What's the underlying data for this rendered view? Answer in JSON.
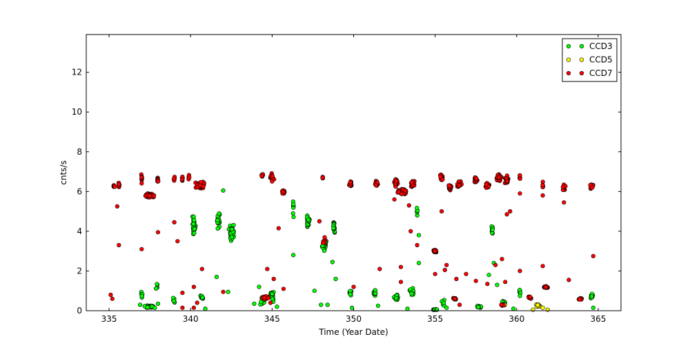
{
  "chart_data": {
    "type": "scatter",
    "xlabel": "Time (Year Date)",
    "ylabel": "cnts/s",
    "xlim": [
      333.6,
      366.4
    ],
    "ylim": [
      0,
      13.9
    ],
    "x_ticks": [
      335,
      340,
      345,
      350,
      355,
      360,
      365
    ],
    "y_ticks": [
      0,
      2,
      4,
      6,
      8,
      10,
      12
    ],
    "grid": false,
    "legend_position": "top-right",
    "note": "values estimated from the plot; dense clusters summarized by center/spread/count",
    "series": [
      {
        "name": "CCD3",
        "color": "#00ff00",
        "clusters": [
          {
            "x": 337.5,
            "y": 0.2,
            "dx": 0.5,
            "dy": 0.08,
            "n": 45
          },
          {
            "x": 337.0,
            "y": 0.8,
            "dx": 0.1,
            "dy": 0.2,
            "n": 8
          },
          {
            "x": 337.9,
            "y": 1.2,
            "dx": 0.1,
            "dy": 0.2,
            "n": 6
          },
          {
            "x": 339.0,
            "y": 0.55,
            "dx": 0.08,
            "dy": 0.2,
            "n": 6
          },
          {
            "x": 340.2,
            "y": 4.3,
            "dx": 0.12,
            "dy": 0.7,
            "n": 30
          },
          {
            "x": 340.7,
            "y": 0.6,
            "dx": 0.2,
            "dy": 0.2,
            "n": 10
          },
          {
            "x": 341.7,
            "y": 4.6,
            "dx": 0.12,
            "dy": 0.55,
            "n": 25
          },
          {
            "x": 342.5,
            "y": 4.0,
            "dx": 0.2,
            "dy": 0.5,
            "n": 35
          },
          {
            "x": 344.4,
            "y": 0.5,
            "dx": 0.2,
            "dy": 0.3,
            "n": 15
          },
          {
            "x": 345.0,
            "y": 0.8,
            "dx": 0.15,
            "dy": 0.4,
            "n": 20
          },
          {
            "x": 346.3,
            "y": 5.2,
            "dx": 0.05,
            "dy": 0.6,
            "n": 8
          },
          {
            "x": 347.2,
            "y": 4.5,
            "dx": 0.12,
            "dy": 0.5,
            "n": 25
          },
          {
            "x": 348.2,
            "y": 3.3,
            "dx": 0.15,
            "dy": 0.4,
            "n": 30
          },
          {
            "x": 348.8,
            "y": 4.2,
            "dx": 0.08,
            "dy": 0.5,
            "n": 15
          },
          {
            "x": 349.8,
            "y": 0.9,
            "dx": 0.1,
            "dy": 0.2,
            "n": 12
          },
          {
            "x": 351.3,
            "y": 0.9,
            "dx": 0.1,
            "dy": 0.2,
            "n": 12
          },
          {
            "x": 352.6,
            "y": 0.65,
            "dx": 0.2,
            "dy": 0.2,
            "n": 15
          },
          {
            "x": 353.6,
            "y": 0.95,
            "dx": 0.2,
            "dy": 0.25,
            "n": 18
          },
          {
            "x": 353.9,
            "y": 5.0,
            "dx": 0.05,
            "dy": 0.4,
            "n": 5
          },
          {
            "x": 355.0,
            "y": 0.05,
            "dx": 0.2,
            "dy": 0.04,
            "n": 12
          },
          {
            "x": 355.5,
            "y": 0.4,
            "dx": 0.1,
            "dy": 0.2,
            "n": 6
          },
          {
            "x": 357.7,
            "y": 0.2,
            "dx": 0.2,
            "dy": 0.06,
            "n": 20
          },
          {
            "x": 358.5,
            "y": 4.0,
            "dx": 0.06,
            "dy": 0.4,
            "n": 10
          },
          {
            "x": 359.2,
            "y": 0.4,
            "dx": 0.15,
            "dy": 0.2,
            "n": 10
          },
          {
            "x": 360.2,
            "y": 0.9,
            "dx": 0.05,
            "dy": 0.3,
            "n": 8
          },
          {
            "x": 364.6,
            "y": 0.7,
            "dx": 0.1,
            "dy": 0.2,
            "n": 15
          }
        ],
        "points": [
          [
            336.9,
            0.3
          ],
          [
            338.0,
            0.35
          ],
          [
            340.9,
            0.1
          ],
          [
            341.6,
            1.7
          ],
          [
            342.0,
            6.05
          ],
          [
            342.3,
            0.95
          ],
          [
            343.9,
            0.35
          ],
          [
            344.2,
            1.2
          ],
          [
            345.3,
            0.2
          ],
          [
            346.3,
            2.8
          ],
          [
            347.6,
            1.0
          ],
          [
            348.0,
            0.3
          ],
          [
            348.4,
            0.3
          ],
          [
            348.7,
            2.45
          ],
          [
            348.9,
            1.6
          ],
          [
            349.9,
            0.15
          ],
          [
            351.5,
            0.25
          ],
          [
            353.3,
            0.1
          ],
          [
            354.0,
            2.4
          ],
          [
            354.0,
            3.8
          ],
          [
            355.7,
            0.15
          ],
          [
            358.3,
            1.8
          ],
          [
            358.6,
            2.4
          ],
          [
            358.8,
            1.3
          ],
          [
            359.8,
            0.1
          ],
          [
            364.7,
            0.15
          ]
        ]
      },
      {
        "name": "CCD5",
        "color": "#ffff00",
        "clusters": [
          {
            "x": 361.3,
            "y": 0.25,
            "dx": 0.2,
            "dy": 0.08,
            "n": 14
          },
          {
            "x": 359.2,
            "y": 0.3,
            "dx": 0.12,
            "dy": 0.08,
            "n": 8
          }
        ],
        "points": [
          [
            361.0,
            0.05
          ],
          [
            361.9,
            0.05
          ],
          [
            361.6,
            0.15
          ]
        ]
      },
      {
        "name": "CCD7",
        "color": "#ff0000",
        "clusters": [
          {
            "x": 335.3,
            "y": 6.3,
            "dx": 0.06,
            "dy": 0.15,
            "n": 8
          },
          {
            "x": 335.6,
            "y": 6.3,
            "dx": 0.05,
            "dy": 0.2,
            "n": 6
          },
          {
            "x": 337.0,
            "y": 6.6,
            "dx": 0.05,
            "dy": 0.35,
            "n": 8
          },
          {
            "x": 337.5,
            "y": 5.8,
            "dx": 0.4,
            "dy": 0.15,
            "n": 60
          },
          {
            "x": 338.0,
            "y": 6.6,
            "dx": 0.06,
            "dy": 0.25,
            "n": 8
          },
          {
            "x": 339.0,
            "y": 6.6,
            "dx": 0.06,
            "dy": 0.2,
            "n": 6
          },
          {
            "x": 339.5,
            "y": 6.6,
            "dx": 0.06,
            "dy": 0.2,
            "n": 6
          },
          {
            "x": 339.9,
            "y": 6.7,
            "dx": 0.05,
            "dy": 0.2,
            "n": 5
          },
          {
            "x": 340.6,
            "y": 6.3,
            "dx": 0.35,
            "dy": 0.25,
            "n": 45
          },
          {
            "x": 344.4,
            "y": 6.8,
            "dx": 0.1,
            "dy": 0.15,
            "n": 12
          },
          {
            "x": 345.0,
            "y": 6.7,
            "dx": 0.15,
            "dy": 0.25,
            "n": 18
          },
          {
            "x": 345.7,
            "y": 6.0,
            "dx": 0.12,
            "dy": 0.2,
            "n": 15
          },
          {
            "x": 344.6,
            "y": 0.65,
            "dx": 0.25,
            "dy": 0.1,
            "n": 20
          },
          {
            "x": 348.1,
            "y": 6.7,
            "dx": 0.03,
            "dy": 0.15,
            "n": 4
          },
          {
            "x": 348.2,
            "y": 3.5,
            "dx": 0.1,
            "dy": 0.3,
            "n": 8
          },
          {
            "x": 349.8,
            "y": 6.4,
            "dx": 0.1,
            "dy": 0.2,
            "n": 20
          },
          {
            "x": 351.4,
            "y": 6.4,
            "dx": 0.1,
            "dy": 0.2,
            "n": 18
          },
          {
            "x": 352.6,
            "y": 6.5,
            "dx": 0.15,
            "dy": 0.3,
            "n": 25
          },
          {
            "x": 353.0,
            "y": 6.0,
            "dx": 0.35,
            "dy": 0.2,
            "n": 60
          },
          {
            "x": 353.6,
            "y": 6.4,
            "dx": 0.15,
            "dy": 0.3,
            "n": 25
          },
          {
            "x": 355.0,
            "y": 3.0,
            "dx": 0.15,
            "dy": 0.1,
            "n": 18
          },
          {
            "x": 355.4,
            "y": 6.7,
            "dx": 0.1,
            "dy": 0.2,
            "n": 18
          },
          {
            "x": 355.9,
            "y": 6.2,
            "dx": 0.15,
            "dy": 0.2,
            "n": 22
          },
          {
            "x": 356.5,
            "y": 6.35,
            "dx": 0.2,
            "dy": 0.2,
            "n": 28
          },
          {
            "x": 356.2,
            "y": 0.6,
            "dx": 0.12,
            "dy": 0.07,
            "n": 10
          },
          {
            "x": 357.5,
            "y": 6.6,
            "dx": 0.15,
            "dy": 0.2,
            "n": 22
          },
          {
            "x": 358.2,
            "y": 6.3,
            "dx": 0.15,
            "dy": 0.15,
            "n": 25
          },
          {
            "x": 358.9,
            "y": 6.7,
            "dx": 0.2,
            "dy": 0.25,
            "n": 30
          },
          {
            "x": 359.4,
            "y": 6.6,
            "dx": 0.15,
            "dy": 0.25,
            "n": 25
          },
          {
            "x": 360.2,
            "y": 6.7,
            "dx": 0.04,
            "dy": 0.15,
            "n": 6
          },
          {
            "x": 360.8,
            "y": 0.65,
            "dx": 0.15,
            "dy": 0.08,
            "n": 12
          },
          {
            "x": 361.8,
            "y": 1.2,
            "dx": 0.15,
            "dy": 0.08,
            "n": 18
          },
          {
            "x": 361.6,
            "y": 6.3,
            "dx": 0.03,
            "dy": 0.3,
            "n": 6
          },
          {
            "x": 362.9,
            "y": 6.2,
            "dx": 0.12,
            "dy": 0.2,
            "n": 18
          },
          {
            "x": 363.9,
            "y": 0.6,
            "dx": 0.15,
            "dy": 0.06,
            "n": 12
          },
          {
            "x": 364.6,
            "y": 6.3,
            "dx": 0.12,
            "dy": 0.2,
            "n": 20
          },
          {
            "x": 359.1,
            "y": 0.3,
            "dx": 0.12,
            "dy": 0.07,
            "n": 8
          }
        ],
        "points": [
          [
            335.1,
            0.8
          ],
          [
            335.2,
            0.6
          ],
          [
            335.5,
            5.25
          ],
          [
            335.6,
            3.3
          ],
          [
            337.0,
            3.1
          ],
          [
            338.0,
            3.95
          ],
          [
            339.0,
            4.45
          ],
          [
            339.2,
            3.5
          ],
          [
            339.5,
            0.15
          ],
          [
            339.5,
            0.9
          ],
          [
            340.2,
            1.2
          ],
          [
            340.2,
            0.15
          ],
          [
            340.4,
            0.4
          ],
          [
            340.7,
            2.1
          ],
          [
            342.0,
            0.95
          ],
          [
            344.7,
            2.1
          ],
          [
            344.9,
            0.4
          ],
          [
            345.1,
            1.6
          ],
          [
            345.4,
            4.15
          ],
          [
            345.7,
            1.1
          ],
          [
            347.9,
            4.5
          ],
          [
            350.0,
            1.2
          ],
          [
            351.6,
            2.1
          ],
          [
            352.5,
            5.6
          ],
          [
            352.9,
            1.45
          ],
          [
            352.9,
            2.2
          ],
          [
            353.4,
            5.3
          ],
          [
            353.5,
            4.0
          ],
          [
            353.9,
            3.3
          ],
          [
            355.0,
            1.85
          ],
          [
            355.4,
            5.0
          ],
          [
            355.6,
            2.05
          ],
          [
            355.7,
            2.3
          ],
          [
            356.3,
            1.6
          ],
          [
            356.5,
            0.3
          ],
          [
            356.9,
            1.85
          ],
          [
            357.5,
            1.5
          ],
          [
            358.2,
            1.35
          ],
          [
            358.7,
            2.3
          ],
          [
            359.1,
            2.6
          ],
          [
            359.3,
            1.45
          ],
          [
            359.4,
            4.85
          ],
          [
            359.6,
            5.0
          ],
          [
            360.2,
            5.9
          ],
          [
            360.2,
            2.0
          ],
          [
            361.6,
            2.25
          ],
          [
            361.6,
            5.8
          ],
          [
            362.9,
            5.45
          ],
          [
            363.2,
            1.55
          ],
          [
            364.7,
            2.75
          ]
        ]
      }
    ]
  }
}
